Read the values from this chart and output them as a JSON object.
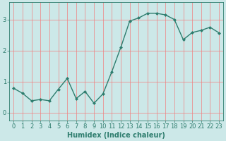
{
  "x": [
    0,
    1,
    2,
    3,
    4,
    5,
    6,
    7,
    8,
    9,
    10,
    11,
    12,
    13,
    14,
    15,
    16,
    17,
    18,
    19,
    20,
    21,
    22,
    23
  ],
  "y": [
    0.78,
    0.62,
    0.38,
    0.42,
    0.38,
    0.75,
    1.1,
    0.45,
    0.68,
    0.3,
    0.6,
    1.32,
    2.1,
    2.95,
    3.05,
    3.2,
    3.2,
    3.15,
    3.0,
    2.35,
    2.58,
    2.65,
    2.75,
    2.57
  ],
  "xlabel": "Humidex (Indice chaleur)",
  "line_color": "#2e7d6e",
  "bg_color": "#cce8e8",
  "grid_color": "#f08080",
  "yticks": [
    0,
    1,
    2,
    3
  ],
  "ylim": [
    -0.25,
    3.55
  ],
  "xlim": [
    -0.5,
    23.5
  ],
  "xticks": [
    0,
    1,
    2,
    3,
    4,
    5,
    6,
    7,
    8,
    9,
    10,
    11,
    12,
    13,
    14,
    15,
    16,
    17,
    18,
    19,
    20,
    21,
    22,
    23
  ],
  "marker": "D",
  "markersize": 2.0,
  "linewidth": 1.0,
  "xlabel_fontsize": 7,
  "tick_fontsize": 6
}
